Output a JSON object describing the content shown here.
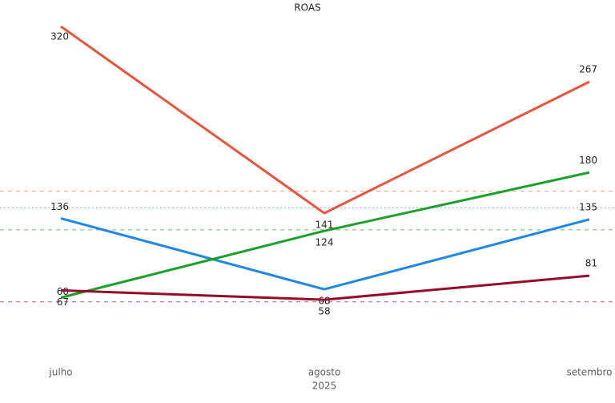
{
  "chart_data": {
    "type": "line",
    "title": "ROAS",
    "x_label": "2025",
    "categories": [
      "julho",
      "agosto",
      "setembro"
    ],
    "ylim": [
      0,
      330
    ],
    "series": [
      {
        "color": "#e8553e",
        "values": [
          320,
          141,
          267
        ],
        "reference": 162
      },
      {
        "color": "#1e88e5",
        "values": [
          136,
          68,
          135
        ],
        "reference": 146
      },
      {
        "color": "#1aa12a",
        "values": [
          60,
          124,
          180
        ],
        "reference": 125
      },
      {
        "color": "#960a2c",
        "values": [
          67,
          58,
          81
        ],
        "reference": 56
      }
    ]
  }
}
